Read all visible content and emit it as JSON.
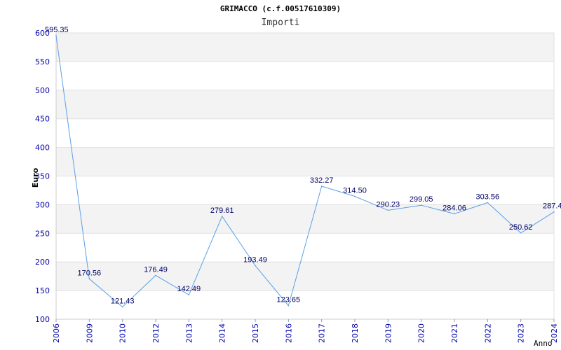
{
  "chart_data": {
    "type": "line",
    "title": "GRIMACCO (c.f.00517610309)",
    "subtitle": "Importi",
    "xlabel": "Anno",
    "ylabel": "Euro",
    "ylim": [
      100,
      600
    ],
    "yticks": [
      100,
      150,
      200,
      250,
      300,
      350,
      400,
      450,
      500,
      550,
      600
    ],
    "grid": "horizontal alternating bands",
    "line_color": "#5aa0e6",
    "label_color": "#000066",
    "tick_color": "#0000aa",
    "categories": [
      "2006",
      "2009",
      "2010",
      "2012",
      "2013",
      "2014",
      "2015",
      "2016",
      "2017",
      "2018",
      "2019",
      "2020",
      "2021",
      "2022",
      "2023",
      "2024"
    ],
    "values": [
      595.35,
      170.56,
      121.43,
      176.49,
      142.49,
      279.61,
      193.49,
      123.65,
      332.27,
      314.5,
      290.23,
      299.05,
      284.06,
      303.56,
      250.62,
      287.4
    ],
    "value_labels": [
      "595.35",
      "170.56",
      "121.43",
      "176.49",
      "142.49",
      "279.61",
      "193.49",
      "123.65",
      "332.27",
      "314.50",
      "290.23",
      "299.05",
      "284.06",
      "303.56",
      "250.62",
      "287.4"
    ]
  }
}
